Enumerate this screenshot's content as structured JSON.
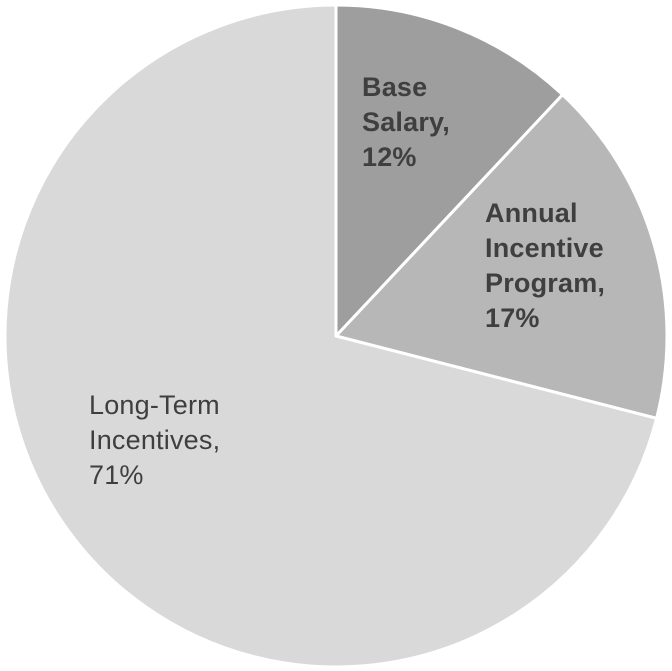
{
  "chart_data": {
    "type": "pie",
    "title": "",
    "categories": [
      "Base Salary",
      "Annual Incentive Program",
      "Long-Term Incentives"
    ],
    "values": [
      12,
      17,
      71
    ],
    "start_angle_deg": 0,
    "direction": "clockwise",
    "legend": "none",
    "labels_position": "inside",
    "stroke_color": "#ffffff",
    "stroke_width": 3,
    "label_color": "#3f3f3f",
    "slices": [
      {
        "id": "base-salary",
        "label": "Base Salary",
        "value": 12,
        "display": "Base\nSalary,\n12%",
        "color": "#9e9e9e",
        "bold": true
      },
      {
        "id": "annual-incentive-program",
        "label": "Annual Incentive Program",
        "value": 17,
        "display": "Annual\nIncentive\nProgram,\n17%",
        "color": "#b7b7b7",
        "bold": true
      },
      {
        "id": "long-term-incentives",
        "label": "Long-Term Incentives",
        "value": 71,
        "display": "Long-Term\nIncentives,\n71%",
        "color": "#d9d9d9",
        "bold": false
      }
    ]
  }
}
